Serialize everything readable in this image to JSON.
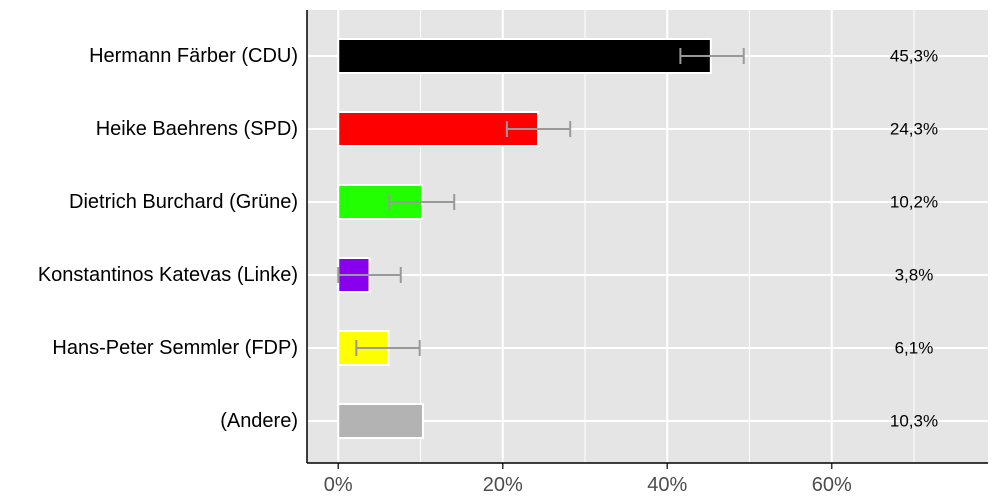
{
  "chart_data": {
    "type": "bar",
    "orientation": "horizontal",
    "categories": [
      "Hermann Färber (CDU)",
      "Heike Baehrens (SPD)",
      "Dietrich Burchard (Grüne)",
      "Konstantinos Katevas (Linke)",
      "Hans-Peter Semmler (FDP)",
      "(Andere)"
    ],
    "values": [
      45.3,
      24.3,
      10.2,
      3.8,
      6.1,
      10.3
    ],
    "value_labels": [
      "45,3%",
      "24,3%",
      "10,2%",
      "3,8%",
      "6,1%",
      "10,3%"
    ],
    "error_bars": [
      [
        41.6,
        49.3
      ],
      [
        20.5,
        28.2
      ],
      [
        6.2,
        14.1
      ],
      [
        0.0,
        7.6
      ],
      [
        2.2,
        9.9
      ],
      null
    ],
    "colors": [
      "#000000",
      "#ff0000",
      "#22ff00",
      "#8800ee",
      "#ffff00",
      "#b3b3b3"
    ],
    "xlim": [
      -3.8,
      79
    ],
    "x_ticks": [
      0,
      20,
      40,
      60
    ],
    "x_tick_labels": [
      "0%",
      "20%",
      "40%",
      "60%"
    ],
    "grid": true,
    "title": "",
    "xlabel": "",
    "ylabel": ""
  }
}
